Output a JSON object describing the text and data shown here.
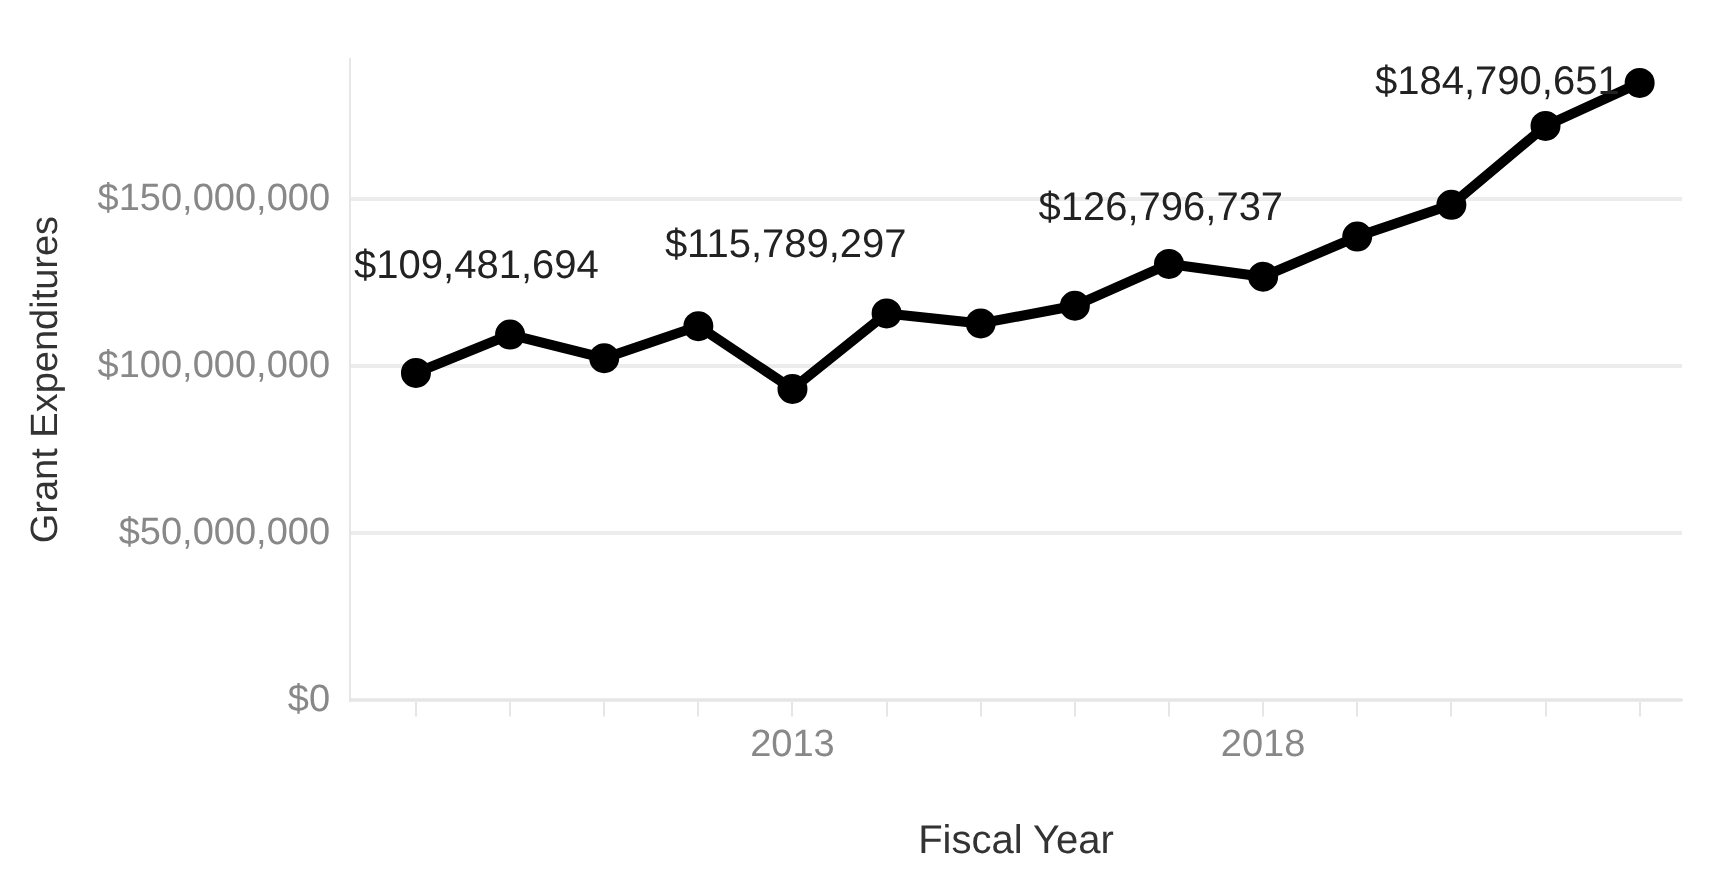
{
  "chart_data": {
    "type": "line",
    "xlabel": "Fiscal Year",
    "ylabel": "Grant Expenditures",
    "x": [
      2009,
      2010,
      2011,
      2012,
      2013,
      2014,
      2015,
      2016,
      2017,
      2018,
      2019,
      2020,
      2021,
      2022
    ],
    "series": [
      {
        "color": "#000000",
        "values": [
          98000000,
          109481694,
          102400000,
          112000000,
          93200000,
          115789297,
          112800000,
          118100000,
          130600000,
          126796737,
          138800000,
          148300000,
          171900000,
          184790651
        ],
        "value_labels": [
          null,
          "$109,481,694",
          null,
          null,
          null,
          "$115,789,297",
          null,
          null,
          null,
          "$126,796,737",
          null,
          null,
          null,
          "$184,790,651"
        ]
      }
    ],
    "xlim": [
      2008.3,
      2022.45
    ],
    "xticks": [
      {
        "value": 2009,
        "label": null
      },
      {
        "value": 2010,
        "label": null
      },
      {
        "value": 2011,
        "label": null
      },
      {
        "value": 2012,
        "label": null
      },
      2013,
      {
        "value": 2014,
        "label": null
      },
      {
        "value": 2015,
        "label": null
      },
      {
        "value": 2016,
        "label": null
      },
      {
        "value": 2017,
        "label": null
      },
      2018,
      {
        "value": 2019,
        "label": null
      },
      {
        "value": 2020,
        "label": null
      },
      {
        "value": 2021,
        "label": null
      },
      {
        "value": 2022,
        "label": null
      }
    ],
    "ylim": [
      0,
      192000000
    ],
    "yticks": [
      {
        "value": 0,
        "label": "$0"
      },
      {
        "value": 50000000,
        "label": "$50,000,000"
      },
      {
        "value": 100000000,
        "label": "$100,000,000"
      },
      {
        "value": 150000000,
        "label": "$150,000,000"
      }
    ],
    "grid": "y",
    "legend": false,
    "marker": "circle",
    "line_style": "solid"
  }
}
